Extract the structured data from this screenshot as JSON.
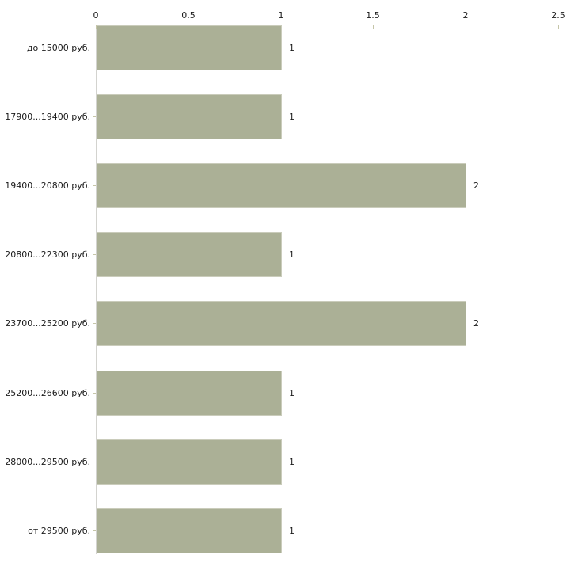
{
  "chart_data": {
    "type": "bar",
    "orientation": "horizontal",
    "title": "",
    "xlabel": "",
    "ylabel": "",
    "categories": [
      "до 15000 руб.",
      "17900...19400 руб.",
      "19400...20800 руб.",
      "20800...22300 руб.",
      "23700...25200 руб.",
      "25200...26600 руб.",
      "28000...29500 руб.",
      "от 29500 руб."
    ],
    "values": [
      1,
      1,
      2,
      1,
      2,
      1,
      1,
      1
    ],
    "value_labels": [
      "1",
      "1",
      "2",
      "1",
      "2",
      "1",
      "1",
      "1"
    ],
    "xlim": [
      0,
      2.5
    ],
    "x_ticks": [
      0,
      0.5,
      1,
      1.5,
      2,
      2.5
    ],
    "x_tick_labels": [
      "0",
      "0.5",
      "1",
      "1.5",
      "2",
      "2.5"
    ],
    "axis_position": "top",
    "grid": false,
    "legend": false,
    "colors": {
      "bar_fill": "#abb096",
      "bar_border": "#caccbb",
      "axis_line": "#d3d3cf",
      "tick_mark": "#c5c5a8",
      "label_text": "#1b1b1b",
      "background": "#ffffff"
    }
  }
}
